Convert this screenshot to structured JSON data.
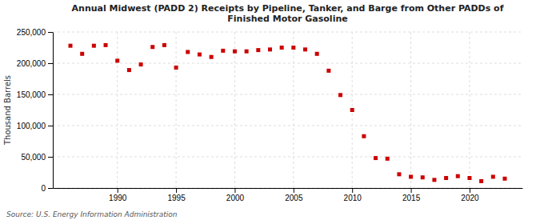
{
  "chart_data": {
    "type": "scatter",
    "title": "Annual Midwest (PADD 2) Receipts by Pipeline, Tanker, and Barge from Other PADDs of\nFinished Motor Gasoline",
    "ylabel": "Thousand Barrels",
    "source": "Source: U.S. Energy Information Administration",
    "color": "#cc0000",
    "marker": "square",
    "grid": true,
    "x": [
      1986,
      1987,
      1988,
      1989,
      1990,
      1991,
      1992,
      1993,
      1994,
      1995,
      1996,
      1997,
      1998,
      1999,
      2000,
      2001,
      2002,
      2003,
      2004,
      2005,
      2006,
      2007,
      2008,
      2009,
      2010,
      2011,
      2012,
      2013,
      2014,
      2015,
      2016,
      2017,
      2018,
      2019,
      2020,
      2021,
      2022,
      2023
    ],
    "values": [
      228000,
      215000,
      228000,
      229000,
      204000,
      189000,
      198000,
      226000,
      229000,
      193000,
      218000,
      214000,
      210000,
      220000,
      219000,
      219000,
      221000,
      222000,
      225000,
      225000,
      222000,
      215000,
      188000,
      149000,
      125000,
      83000,
      48000,
      47000,
      22000,
      18000,
      17000,
      13000,
      16000,
      19000,
      16000,
      11000,
      18000,
      15000
    ],
    "xlim": [
      1984.5,
      2024.5
    ],
    "xticks": [
      1990,
      1995,
      2000,
      2005,
      2010,
      2015,
      2020
    ],
    "ylim": [
      0,
      250000
    ],
    "yticks": [
      0,
      {
        "value": 50000,
        "label": "50,000"
      },
      {
        "value": 100000,
        "label": "100,000"
      },
      {
        "value": 150000,
        "label": "150,000"
      },
      {
        "value": 200000,
        "label": "200,000"
      },
      {
        "value": 250000,
        "label": "250,000"
      }
    ]
  }
}
